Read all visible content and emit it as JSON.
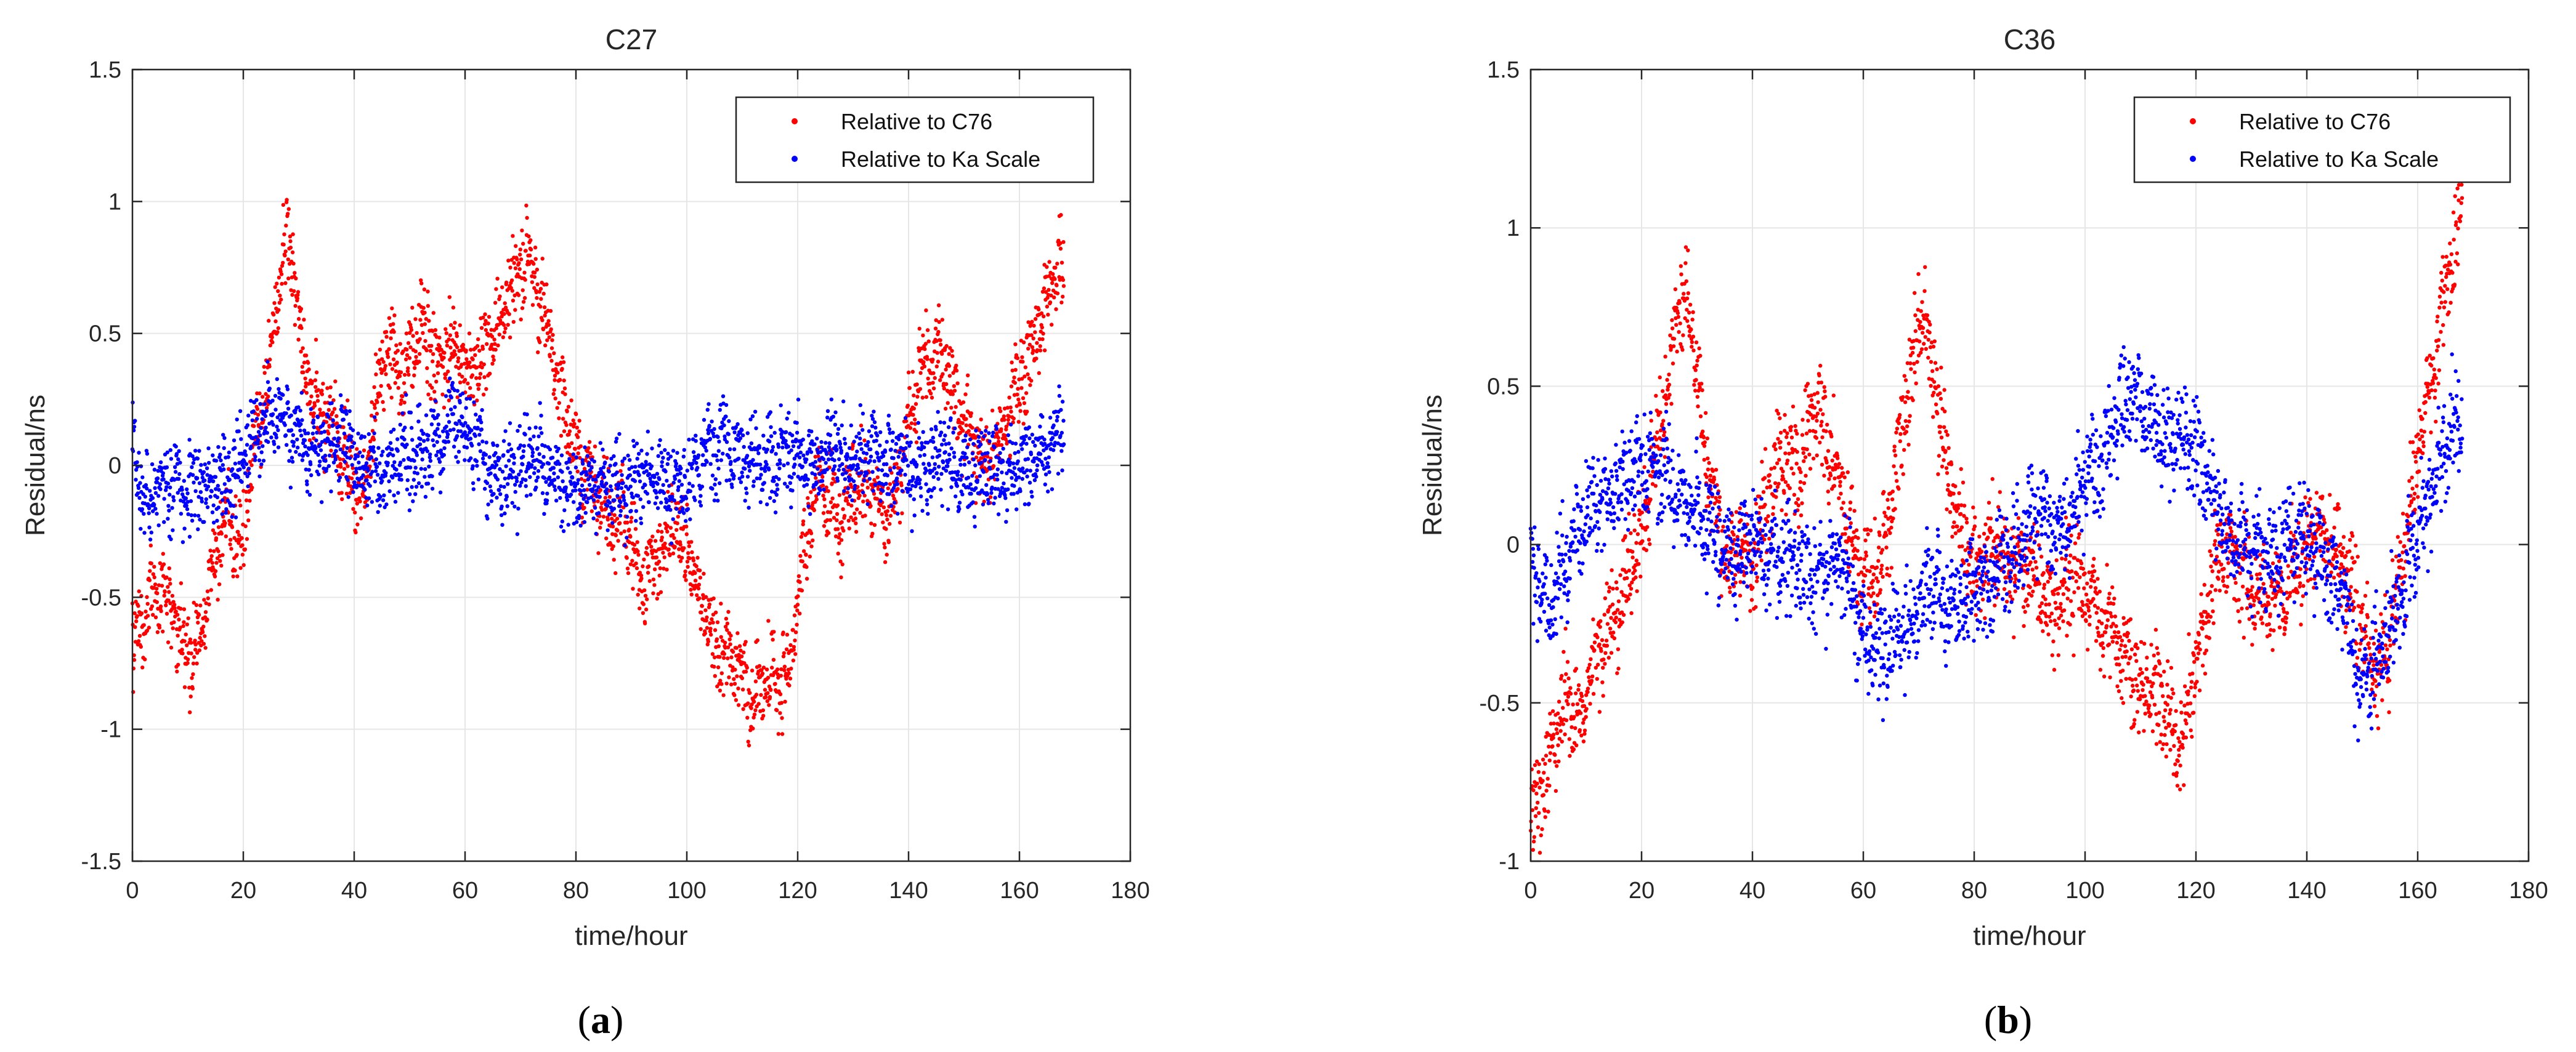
{
  "figure": {
    "captions": [
      {
        "open": "(",
        "letter": "a",
        "close": ")"
      },
      {
        "open": "(",
        "letter": "b",
        "close": ")"
      }
    ]
  },
  "colors": {
    "c76": "#ff0000",
    "ka": "#0000ff",
    "grid": "#e6e6e6",
    "axis": "#262626"
  },
  "chart_data": [
    {
      "type": "scatter",
      "title": "C27",
      "xlabel": "time/hour",
      "ylabel": "Residual/ns",
      "xlim": [
        0,
        180
      ],
      "ylim": [
        -1.5,
        1.5
      ],
      "xticks": [
        0,
        20,
        40,
        60,
        80,
        100,
        120,
        140,
        160,
        180
      ],
      "yticks": [
        -1.5,
        -1,
        -0.5,
        0,
        0.5,
        1,
        1.5
      ],
      "xtick_labels": [
        "0",
        "20",
        "40",
        "60",
        "80",
        "100",
        "120",
        "140",
        "160",
        "180"
      ],
      "ytick_labels": [
        "-1.5",
        "-1",
        "-0.5",
        "0",
        "0.5",
        "1",
        "1.5"
      ],
      "grid": true,
      "legend_position": "top-right",
      "series": [
        {
          "name": "Relative to C76",
          "color": "#ff0000",
          "trend": [
            [
              0,
              -0.7
            ],
            [
              4,
              -0.45
            ],
            [
              7,
              -0.55
            ],
            [
              11,
              -0.75
            ],
            [
              14,
              -0.45
            ],
            [
              17,
              -0.2
            ],
            [
              20,
              -0.3
            ],
            [
              22,
              0.1
            ],
            [
              25,
              0.4
            ],
            [
              27,
              0.85
            ],
            [
              29,
              0.8
            ],
            [
              31,
              0.35
            ],
            [
              35,
              0.15
            ],
            [
              38,
              0.05
            ],
            [
              40,
              -0.05
            ],
            [
              42,
              -0.1
            ],
            [
              44,
              0.25
            ],
            [
              46,
              0.45
            ],
            [
              49,
              0.3
            ],
            [
              52,
              0.55
            ],
            [
              55,
              0.4
            ],
            [
              58,
              0.45
            ],
            [
              61,
              0.35
            ],
            [
              64,
              0.45
            ],
            [
              68,
              0.65
            ],
            [
              71,
              0.8
            ],
            [
              74,
              0.6
            ],
            [
              77,
              0.3
            ],
            [
              80,
              0.05
            ],
            [
              83,
              -0.1
            ],
            [
              86,
              -0.2
            ],
            [
              89,
              -0.2
            ],
            [
              92,
              -0.45
            ],
            [
              95,
              -0.35
            ],
            [
              98,
              -0.2
            ],
            [
              100,
              -0.35
            ],
            [
              103,
              -0.55
            ],
            [
              106,
              -0.7
            ],
            [
              109,
              -0.75
            ],
            [
              112,
              -0.9
            ],
            [
              115,
              -0.75
            ],
            [
              118,
              -0.85
            ],
            [
              121,
              -0.35
            ],
            [
              124,
              -0.05
            ],
            [
              127,
              -0.2
            ],
            [
              130,
              -0.1
            ],
            [
              133,
              -0.05
            ],
            [
              136,
              -0.2
            ],
            [
              139,
              0.05
            ],
            [
              142,
              0.35
            ],
            [
              145,
              0.45
            ],
            [
              148,
              0.3
            ],
            [
              151,
              0.1
            ],
            [
              154,
              0
            ],
            [
              157,
              0.15
            ],
            [
              160,
              0.3
            ],
            [
              163,
              0.5
            ],
            [
              166,
              0.7
            ],
            [
              168,
              0.8
            ]
          ]
        },
        {
          "name": "Relative to Ka Scale",
          "color": "#0000ff",
          "trend": [
            [
              0,
              0.05
            ],
            [
              3,
              -0.15
            ],
            [
              6,
              -0.05
            ],
            [
              10,
              -0.1
            ],
            [
              14,
              -0.05
            ],
            [
              18,
              -0.05
            ],
            [
              22,
              0.1
            ],
            [
              26,
              0.2
            ],
            [
              28,
              0.15
            ],
            [
              32,
              0.05
            ],
            [
              36,
              0.1
            ],
            [
              40,
              0.05
            ],
            [
              44,
              -0.05
            ],
            [
              48,
              0.05
            ],
            [
              52,
              0
            ],
            [
              56,
              0.1
            ],
            [
              58,
              0.2
            ],
            [
              60,
              0.15
            ],
            [
              64,
              0
            ],
            [
              68,
              -0.05
            ],
            [
              72,
              0.05
            ],
            [
              76,
              -0.05
            ],
            [
              80,
              -0.1
            ],
            [
              84,
              -0.05
            ],
            [
              88,
              -0.1
            ],
            [
              92,
              -0.05
            ],
            [
              96,
              -0.05
            ],
            [
              100,
              -0.1
            ],
            [
              103,
              0.05
            ],
            [
              106,
              0.1
            ],
            [
              110,
              0.05
            ],
            [
              114,
              0
            ],
            [
              118,
              0.05
            ],
            [
              122,
              0
            ],
            [
              126,
              0.05
            ],
            [
              130,
              0
            ],
            [
              134,
              0.05
            ],
            [
              138,
              0
            ],
            [
              142,
              -0.05
            ],
            [
              146,
              0.05
            ],
            [
              150,
              -0.05
            ],
            [
              154,
              0
            ],
            [
              158,
              -0.05
            ],
            [
              162,
              0
            ],
            [
              166,
              0.1
            ],
            [
              168,
              0.15
            ]
          ]
        }
      ]
    },
    {
      "type": "scatter",
      "title": "C36",
      "xlabel": "time/hour",
      "ylabel": "Residual/ns",
      "xlim": [
        0,
        180
      ],
      "ylim": [
        -1,
        1.5
      ],
      "xticks": [
        0,
        20,
        40,
        60,
        80,
        100,
        120,
        140,
        160,
        180
      ],
      "yticks": [
        -1,
        -0.5,
        0,
        0.5,
        1,
        1.5
      ],
      "xtick_labels": [
        "0",
        "20",
        "40",
        "60",
        "80",
        "100",
        "120",
        "140",
        "160",
        "180"
      ],
      "ytick_labels": [
        "-1",
        "-0.5",
        "0",
        "0.5",
        "1",
        "1.5"
      ],
      "grid": true,
      "legend_position": "top-right",
      "series": [
        {
          "name": "Relative to C76",
          "color": "#ff0000",
          "trend": [
            [
              0,
              -0.85
            ],
            [
              3,
              -0.7
            ],
            [
              6,
              -0.5
            ],
            [
              9,
              -0.55
            ],
            [
              12,
              -0.35
            ],
            [
              15,
              -0.25
            ],
            [
              18,
              -0.1
            ],
            [
              21,
              0.1
            ],
            [
              24,
              0.45
            ],
            [
              27,
              0.8
            ],
            [
              29,
              0.7
            ],
            [
              31,
              0.35
            ],
            [
              34,
              0.05
            ],
            [
              36,
              -0.05
            ],
            [
              38,
              0
            ],
            [
              40,
              -0.1
            ],
            [
              42,
              0.1
            ],
            [
              45,
              0.3
            ],
            [
              48,
              0.2
            ],
            [
              51,
              0.45
            ],
            [
              54,
              0.3
            ],
            [
              57,
              0.1
            ],
            [
              60,
              -0.15
            ],
            [
              63,
              -0.05
            ],
            [
              66,
              0.25
            ],
            [
              69,
              0.6
            ],
            [
              71,
              0.75
            ],
            [
              74,
              0.35
            ],
            [
              77,
              0.1
            ],
            [
              80,
              -0.1
            ],
            [
              83,
              0
            ],
            [
              86,
              -0.05
            ],
            [
              90,
              -0.1
            ],
            [
              94,
              -0.2
            ],
            [
              98,
              -0.1
            ],
            [
              102,
              -0.2
            ],
            [
              106,
              -0.3
            ],
            [
              110,
              -0.45
            ],
            [
              114,
              -0.5
            ],
            [
              117,
              -0.65
            ],
            [
              120,
              -0.4
            ],
            [
              123,
              -0.1
            ],
            [
              126,
              0
            ],
            [
              130,
              -0.15
            ],
            [
              134,
              -0.2
            ],
            [
              137,
              -0.1
            ],
            [
              140,
              0
            ],
            [
              143,
              0.05
            ],
            [
              146,
              -0.05
            ],
            [
              149,
              -0.2
            ],
            [
              152,
              -0.4
            ],
            [
              155,
              -0.3
            ],
            [
              158,
              0.05
            ],
            [
              161,
              0.4
            ],
            [
              164,
              0.7
            ],
            [
              167,
              1
            ],
            [
              168,
              1.05
            ]
          ]
        },
        {
          "name": "Relative to Ka Scale",
          "color": "#0000ff",
          "trend": [
            [
              0,
              -0.05
            ],
            [
              3,
              -0.2
            ],
            [
              6,
              -0.05
            ],
            [
              10,
              0.1
            ],
            [
              14,
              0.15
            ],
            [
              18,
              0.2
            ],
            [
              22,
              0.25
            ],
            [
              25,
              0.2
            ],
            [
              28,
              0.1
            ],
            [
              32,
              0.05
            ],
            [
              36,
              -0.05
            ],
            [
              40,
              0
            ],
            [
              44,
              -0.05
            ],
            [
              48,
              -0.05
            ],
            [
              52,
              -0.1
            ],
            [
              56,
              -0.05
            ],
            [
              60,
              -0.3
            ],
            [
              64,
              -0.35
            ],
            [
              68,
              -0.25
            ],
            [
              72,
              -0.15
            ],
            [
              76,
              -0.2
            ],
            [
              80,
              -0.15
            ],
            [
              84,
              -0.1
            ],
            [
              88,
              0
            ],
            [
              92,
              0.1
            ],
            [
              96,
              0.05
            ],
            [
              100,
              0.2
            ],
            [
              104,
              0.3
            ],
            [
              108,
              0.5
            ],
            [
              110,
              0.45
            ],
            [
              114,
              0.35
            ],
            [
              118,
              0.35
            ],
            [
              122,
              0.2
            ],
            [
              126,
              0
            ],
            [
              130,
              0
            ],
            [
              134,
              -0.05
            ],
            [
              138,
              0.05
            ],
            [
              142,
              -0.05
            ],
            [
              146,
              -0.15
            ],
            [
              149,
              -0.4
            ],
            [
              151,
              -0.45
            ],
            [
              154,
              -0.3
            ],
            [
              157,
              -0.15
            ],
            [
              160,
              0.05
            ],
            [
              163,
              0.2
            ],
            [
              166,
              0.35
            ],
            [
              168,
              0.4
            ]
          ]
        }
      ]
    }
  ]
}
